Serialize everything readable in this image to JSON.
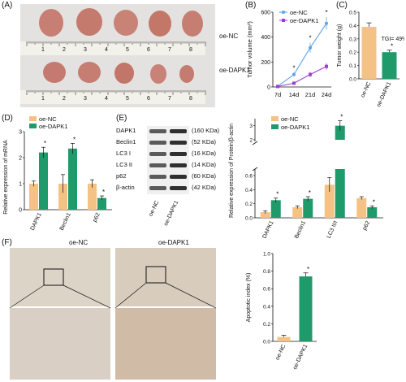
{
  "panels": {
    "A": {
      "label": "(A)",
      "row1": "oe-NC",
      "row2": "oe-DAPK1",
      "ruler1": [
        "1",
        "2",
        "3",
        "4",
        "5",
        "6",
        "7",
        "8"
      ],
      "ruler2": [
        "1",
        "2",
        "3",
        "4",
        "5",
        "6",
        "7",
        "8"
      ]
    },
    "B": {
      "label": "(B)"
    },
    "C": {
      "label": "(C)",
      "tgi": "TGI= 49%"
    },
    "D": {
      "label": "(D)"
    },
    "E": {
      "label": "(E)",
      "blot_rows": [
        {
          "name": "DAPK1",
          "size": "(160 KDa)"
        },
        {
          "name": "Beclin1",
          "size": "(52 KDa)"
        },
        {
          "name": "LC3 I",
          "size": "(16 KDa)"
        },
        {
          "name": "LC3 II",
          "size": "(14 KDa)"
        },
        {
          "name": "p62",
          "size": "(60 KDa)"
        },
        {
          "name": "β-actin",
          "size": "(42 KDa)"
        }
      ],
      "blot_lanes": [
        "oe-NC",
        "oe-DAPK1"
      ]
    },
    "F": {
      "label": "(F)",
      "img1": "oe-NC",
      "img2": "oe-DAPK1"
    }
  },
  "chart_data": [
    {
      "id": "B",
      "type": "line",
      "xlabel": "",
      "ylabel": "Tumor volume (mm³)",
      "categories": [
        "7d",
        "14d",
        "21d",
        "24d"
      ],
      "ylim": [
        0,
        600
      ],
      "yticks": [
        0,
        200,
        400,
        600
      ],
      "series": [
        {
          "name": "oe-NC",
          "color": "#5aa4e8",
          "values": [
            5,
            100,
            315,
            510
          ],
          "err": [
            3,
            15,
            40,
            50
          ]
        },
        {
          "name": "oe-DAPK1",
          "color": "#a23fd0",
          "values": [
            4,
            30,
            100,
            165
          ],
          "err": [
            2,
            8,
            20,
            25
          ]
        }
      ],
      "significance": [
        "",
        "*",
        "*",
        "*"
      ]
    },
    {
      "id": "C",
      "type": "bar",
      "ylabel": "Tumor weight (g)",
      "categories": [
        "oe-NC",
        "oe-DAPK1"
      ],
      "values": [
        0.39,
        0.2
      ],
      "err": [
        0.03,
        0.015
      ],
      "colors": [
        "#f5c285",
        "#1f9b6b"
      ],
      "ylim": [
        0,
        0.5
      ],
      "yticks": [
        0.0,
        0.1,
        0.2,
        0.3,
        0.4,
        0.5
      ],
      "significance": [
        "",
        "*"
      ]
    },
    {
      "id": "D",
      "type": "bar",
      "ylabel": "Relative expression of mRNA",
      "categories": [
        "DAPK1",
        "Beclin1",
        "p62"
      ],
      "ylim": [
        0,
        3
      ],
      "yticks": [
        0,
        1,
        2,
        3
      ],
      "series": [
        {
          "name": "oe-NC",
          "color": "#f5c285",
          "values": [
            1.0,
            1.0,
            1.0
          ],
          "err": [
            0.1,
            0.35,
            0.15
          ]
        },
        {
          "name": "oe-DAPK1",
          "color": "#1f9b6b",
          "values": [
            2.2,
            2.35,
            0.45
          ],
          "err": [
            0.2,
            0.2,
            0.08
          ]
        }
      ],
      "significance": [
        "*",
        "*",
        "*"
      ]
    },
    {
      "id": "E",
      "type": "bar",
      "ylabel": "Relative expression of Protein/β-actin",
      "categories": [
        "DAPK1",
        "Beclin1",
        "LC3 II/I",
        "p62"
      ],
      "ylim": [
        0,
        3.5
      ],
      "yticks_low": [
        "0.0",
        "0.2",
        "0.4",
        "0.6"
      ],
      "yticks_high": [
        "2",
        "3"
      ],
      "series": [
        {
          "name": "oe-NC",
          "color": "#f5c285",
          "values": [
            0.08,
            0.15,
            0.47,
            0.28
          ],
          "err": [
            0.02,
            0.02,
            0.1,
            0.02
          ]
        },
        {
          "name": "oe-DAPK1",
          "color": "#1f9b6b",
          "values": [
            0.25,
            0.27,
            3.0,
            0.15
          ],
          "err": [
            0.03,
            0.03,
            0.35,
            0.02
          ]
        }
      ],
      "significance": [
        "*",
        "*",
        "*",
        "*"
      ]
    },
    {
      "id": "F",
      "type": "bar",
      "ylabel": "Apoptotic index (%)",
      "categories": [
        "oe-NC",
        "oe-DAPK1"
      ],
      "values": [
        0.05,
        0.74
      ],
      "err": [
        0.02,
        0.04
      ],
      "colors": [
        "#f5c285",
        "#1f9b6b"
      ],
      "ylim": [
        0,
        1.0
      ],
      "yticks": [
        0.0,
        0.2,
        0.4,
        0.6,
        0.8,
        1.0
      ],
      "significance": [
        "",
        "*"
      ]
    }
  ]
}
